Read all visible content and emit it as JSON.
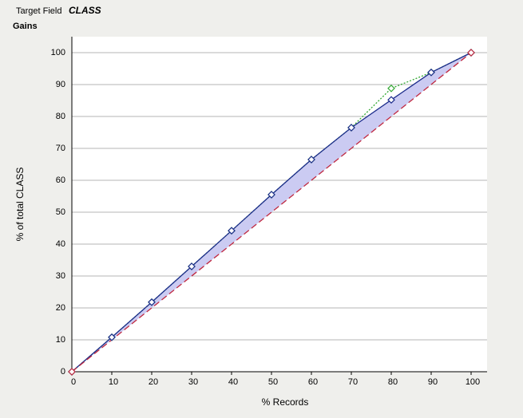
{
  "chart_data": {
    "type": "line",
    "field_label": "Target Field",
    "title": "CLASS",
    "subtitle": "Gains",
    "xlabel": "% Records",
    "ylabel": "% of total CLASS",
    "xlim": [
      0,
      104
    ],
    "ylim": [
      0,
      105
    ],
    "xticks": [
      0,
      10,
      20,
      30,
      40,
      50,
      60,
      70,
      80,
      90,
      100
    ],
    "yticks": [
      0,
      10,
      20,
      30,
      40,
      50,
      60,
      70,
      80,
      90,
      100
    ],
    "grid": true,
    "fill_between": "#cbcbf2",
    "series": [
      {
        "color": "#33a833",
        "dash": "dotted",
        "x": [
          0,
          10,
          20,
          30,
          40,
          50,
          60,
          70,
          80,
          90,
          100
        ],
        "values": [
          0,
          10.8,
          21.8,
          33,
          44.2,
          55.5,
          66.5,
          76.5,
          88.8,
          93.8,
          100
        ]
      },
      {
        "color": "#1c2c8c",
        "dash": "solid",
        "x": [
          0,
          10,
          20,
          30,
          40,
          50,
          60,
          70,
          80,
          90,
          100
        ],
        "values": [
          0,
          10.8,
          21.8,
          33,
          44.2,
          55.5,
          66.5,
          76.5,
          85.2,
          93.8,
          100
        ]
      },
      {
        "color": "#c02840",
        "dash": "dashed",
        "x": [
          0,
          100
        ],
        "values": [
          0,
          100
        ]
      }
    ]
  }
}
